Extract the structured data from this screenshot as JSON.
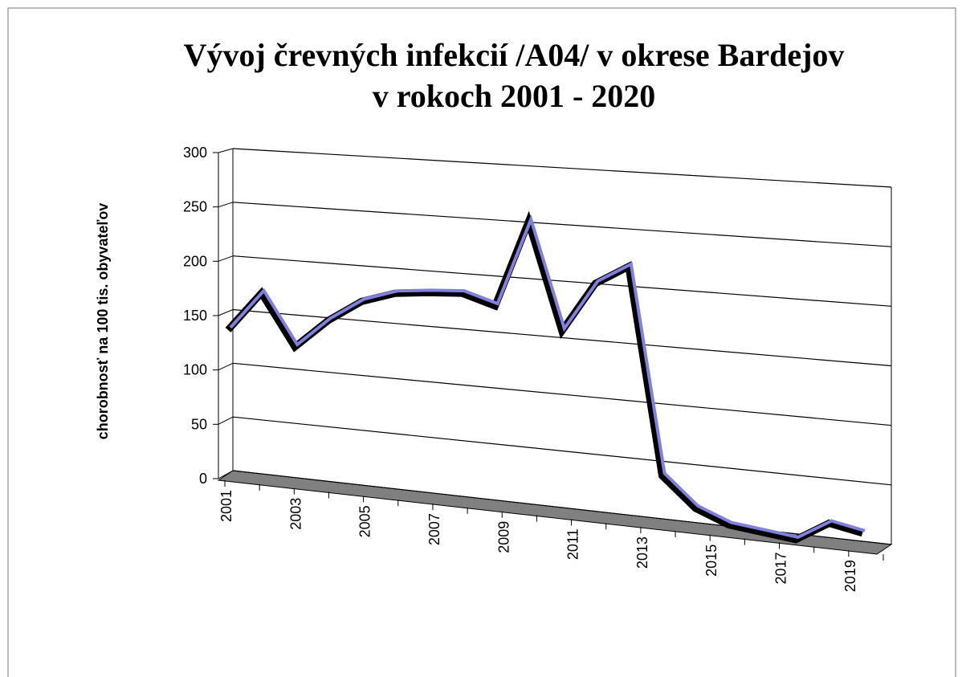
{
  "chart_data": {
    "type": "line",
    "title": "Vývoj črevných infekcií /A04/ v okrese Bardejov",
    "subtitle": "v rokoch 2001 - 2020",
    "y_label": "chorobnosť na 100 tis. obyvateľov",
    "categories": [
      "2001",
      null,
      "2003",
      null,
      "2005",
      null,
      "2007",
      null,
      "2009",
      null,
      "2011",
      null,
      "2013",
      null,
      "2015",
      null,
      "2017",
      null,
      "2019",
      null
    ],
    "series": [
      {
        "name": "A04",
        "color": "#8080e0",
        "values": [
          137,
          174,
          127,
          154,
          174,
          184,
          187,
          189,
          180,
          257,
          163,
          207,
          224,
          45,
          20,
          9,
          6,
          3,
          20,
          15
        ]
      }
    ],
    "ylim": [
      0,
      300
    ],
    "yticks": [
      0,
      50,
      100,
      150,
      200,
      250,
      300
    ],
    "grid": true,
    "legend": false
  }
}
